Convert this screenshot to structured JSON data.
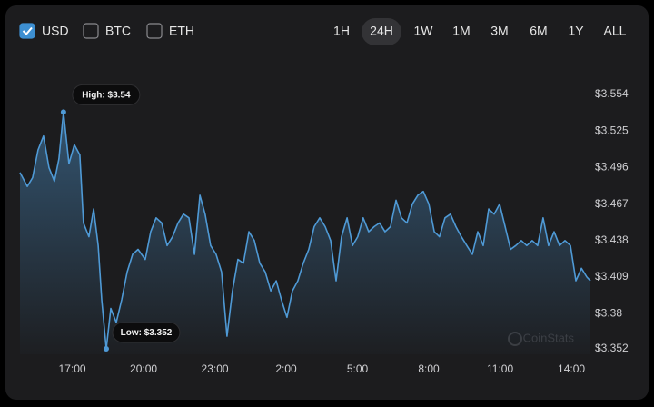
{
  "controls": {
    "currencies": [
      {
        "label": "USD",
        "checked": true
      },
      {
        "label": "BTC",
        "checked": false
      },
      {
        "label": "ETH",
        "checked": false
      }
    ],
    "ranges": [
      "1H",
      "24H",
      "1W",
      "1M",
      "3M",
      "6M",
      "1Y",
      "ALL"
    ],
    "selected_range": 1
  },
  "chart_data": {
    "type": "line",
    "watermark": "CoinStats",
    "color": "#4f9ad6",
    "x": [
      14.8,
      15.11,
      15.33,
      15.56,
      15.79,
      16.02,
      16.25,
      16.44,
      16.63,
      16.86,
      17.09,
      17.32,
      17.47,
      17.7,
      17.9,
      18.09,
      18.24,
      18.43,
      18.62,
      18.85,
      19.08,
      19.31,
      19.54,
      19.77,
      20.07,
      20.3,
      20.53,
      20.76,
      20.99,
      21.22,
      21.45,
      21.68,
      21.91,
      22.14,
      22.37,
      22.59,
      22.82,
      23.05,
      23.28,
      23.51,
      23.74,
      23.97,
      24.2,
      24.43,
      24.66,
      24.89,
      25.12,
      25.35,
      25.58,
      25.8,
      26.03,
      26.26,
      26.49,
      26.72,
      26.95,
      27.18,
      27.41,
      27.64,
      27.87,
      28.1,
      28.33,
      28.56,
      28.79,
      29.01,
      29.24,
      29.47,
      29.7,
      29.93,
      30.16,
      30.39,
      30.62,
      30.85,
      31.08,
      31.31,
      31.54,
      31.77,
      32.0,
      32.23,
      32.45,
      32.68,
      32.91,
      33.14,
      33.37,
      33.6,
      33.83,
      34.06,
      34.29,
      34.52,
      34.75,
      34.98,
      35.21,
      35.44,
      35.66,
      35.89,
      36.12,
      36.35,
      36.58,
      36.81,
      37.04,
      37.27,
      37.5,
      37.73,
      37.96,
      38.19,
      38.42,
      38.65,
      38.8
    ],
    "values": [
      3.492,
      3.481,
      3.488,
      3.51,
      3.521,
      3.496,
      3.485,
      3.503,
      3.54,
      3.499,
      3.514,
      3.506,
      3.452,
      3.441,
      3.463,
      3.434,
      3.391,
      3.352,
      3.384,
      3.373,
      3.391,
      3.413,
      3.427,
      3.431,
      3.423,
      3.445,
      3.456,
      3.452,
      3.434,
      3.441,
      3.452,
      3.459,
      3.456,
      3.427,
      3.474,
      3.459,
      3.434,
      3.427,
      3.413,
      3.362,
      3.398,
      3.423,
      3.42,
      3.445,
      3.438,
      3.42,
      3.413,
      3.398,
      3.406,
      3.391,
      3.377,
      3.398,
      3.406,
      3.42,
      3.431,
      3.449,
      3.456,
      3.449,
      3.438,
      3.406,
      3.441,
      3.456,
      3.434,
      3.441,
      3.456,
      3.445,
      3.449,
      3.452,
      3.445,
      3.449,
      3.47,
      3.456,
      3.452,
      3.467,
      3.474,
      3.477,
      3.467,
      3.445,
      3.441,
      3.456,
      3.459,
      3.449,
      3.441,
      3.434,
      3.427,
      3.445,
      3.434,
      3.463,
      3.459,
      3.467,
      3.449,
      3.431,
      3.434,
      3.438,
      3.434,
      3.438,
      3.434,
      3.456,
      3.434,
      3.445,
      3.434,
      3.438,
      3.434,
      3.406,
      3.416,
      3.409,
      3.406
    ],
    "annotations": [
      {
        "text": "High: $3.54",
        "index": 8
      },
      {
        "text": "Low: $3.352",
        "index": 17
      }
    ],
    "xlim": [
      14.8,
      38.8
    ],
    "xticks": [
      {
        "value": 17,
        "label": "17:00"
      },
      {
        "value": 20,
        "label": "20:00"
      },
      {
        "value": 23,
        "label": "23:00"
      },
      {
        "value": 26,
        "label": "2:00"
      },
      {
        "value": 29,
        "label": "5:00"
      },
      {
        "value": 32,
        "label": "8:00"
      },
      {
        "value": 35,
        "label": "11:00"
      },
      {
        "value": 38,
        "label": "14:00"
      }
    ],
    "ylim": [
      3.352,
      3.554
    ],
    "yticks": [
      {
        "value": 3.352,
        "label": "$3.352"
      },
      {
        "value": 3.38,
        "label": "$3.38"
      },
      {
        "value": 3.409,
        "label": "$3.409"
      },
      {
        "value": 3.438,
        "label": "$3.438"
      },
      {
        "value": 3.467,
        "label": "$3.467"
      },
      {
        "value": 3.496,
        "label": "$3.496"
      },
      {
        "value": 3.525,
        "label": "$3.525"
      },
      {
        "value": 3.554,
        "label": "$3.554"
      }
    ]
  }
}
